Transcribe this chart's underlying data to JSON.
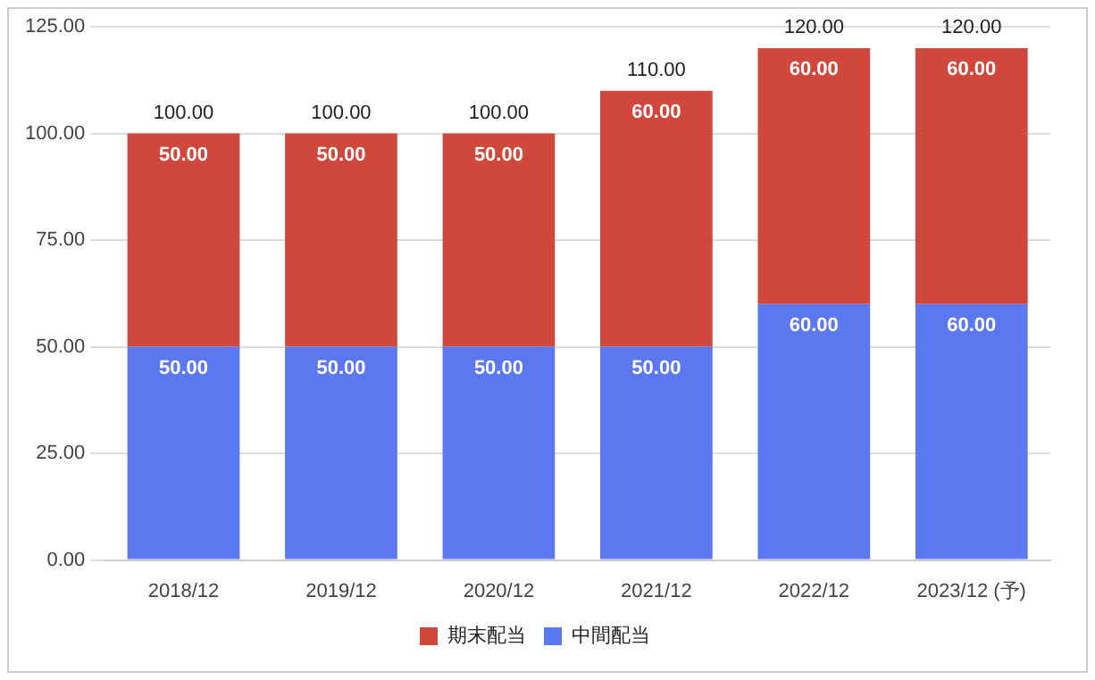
{
  "chart_data": {
    "type": "bar",
    "stacked": true,
    "categories": [
      "2018/12",
      "2019/12",
      "2020/12",
      "2021/12",
      "2022/12",
      "2023/12 (予)"
    ],
    "series": [
      {
        "name": "中間配当",
        "color": "#5b78f0",
        "values": [
          50,
          50,
          50,
          50,
          60,
          60
        ],
        "value_labels": [
          "50.00",
          "50.00",
          "50.00",
          "50.00",
          "60.00",
          "60.00"
        ]
      },
      {
        "name": "期末配当",
        "color": "#d0473b",
        "values": [
          50,
          50,
          50,
          60,
          60,
          60
        ],
        "value_labels": [
          "50.00",
          "50.00",
          "50.00",
          "60.00",
          "60.00",
          "60.00"
        ]
      }
    ],
    "totals": [
      "100.00",
      "100.00",
      "100.00",
      "110.00",
      "120.00",
      "120.00"
    ],
    "ylim": [
      0,
      125
    ],
    "yticks": [
      {
        "value": 0,
        "label": "0.00"
      },
      {
        "value": 25,
        "label": "25.00"
      },
      {
        "value": 50,
        "label": "50.00"
      },
      {
        "value": 75,
        "label": "75.00"
      },
      {
        "value": 100,
        "label": "100.00"
      },
      {
        "value": 125,
        "label": "125.00"
      }
    ],
    "grid": "y",
    "legend": "bottom"
  }
}
